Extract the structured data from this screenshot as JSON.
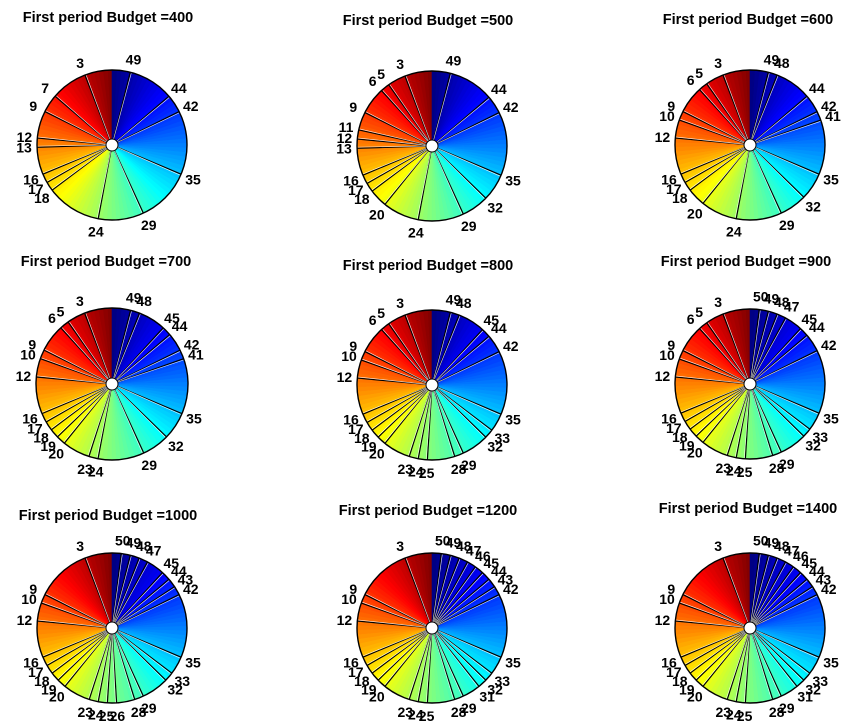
{
  "chart_data": [
    {
      "type": "pie",
      "title": "First period Budget =400",
      "ticks": [
        3,
        7,
        9,
        12,
        13,
        16,
        17,
        18,
        24,
        29,
        35,
        42,
        44,
        49
      ],
      "outline_color": "#000000",
      "colormap": "jet"
    },
    {
      "type": "pie",
      "title": "First period Budget =500",
      "ticks": [
        3,
        5,
        6,
        9,
        11,
        12,
        13,
        16,
        17,
        18,
        20,
        24,
        29,
        32,
        35,
        42,
        44,
        49
      ],
      "outline_color": "#000000",
      "colormap": "jet"
    },
    {
      "type": "pie",
      "title": "First period Budget =600",
      "ticks": [
        3,
        5,
        6,
        9,
        10,
        12,
        16,
        17,
        18,
        20,
        24,
        29,
        32,
        35,
        41,
        42,
        44,
        48,
        49
      ],
      "outline_color": "#000000",
      "colormap": "jet"
    },
    {
      "type": "pie",
      "title": "First period Budget =700",
      "ticks": [
        3,
        5,
        6,
        9,
        10,
        12,
        16,
        17,
        18,
        19,
        20,
        23,
        24,
        29,
        32,
        35,
        41,
        42,
        44,
        45,
        48,
        49
      ],
      "outline_color": "#000000",
      "colormap": "jet"
    },
    {
      "type": "pie",
      "title": "First period Budget =800",
      "ticks": [
        3,
        5,
        6,
        9,
        10,
        12,
        16,
        17,
        18,
        19,
        20,
        23,
        24,
        25,
        28,
        29,
        32,
        33,
        35,
        42,
        44,
        45,
        48,
        49
      ],
      "outline_color": "#000000",
      "colormap": "jet"
    },
    {
      "type": "pie",
      "title": "First period Budget =900",
      "ticks": [
        3,
        5,
        6,
        9,
        10,
        12,
        16,
        17,
        18,
        19,
        20,
        23,
        24,
        25,
        28,
        29,
        32,
        33,
        35,
        42,
        44,
        45,
        47,
        48,
        49,
        50
      ],
      "outline_color": "#000000",
      "colormap": "jet"
    },
    {
      "type": "pie",
      "title": "First period Budget =1000",
      "ticks": [
        3,
        9,
        10,
        12,
        16,
        17,
        18,
        19,
        20,
        23,
        24,
        25,
        26,
        28,
        29,
        32,
        33,
        35,
        42,
        43,
        44,
        45,
        47,
        48,
        49,
        50
      ],
      "outline_color": "#000000",
      "colormap": "jet"
    },
    {
      "type": "pie",
      "title": "First period Budget =1200",
      "ticks": [
        3,
        9,
        10,
        12,
        16,
        17,
        18,
        19,
        20,
        23,
        24,
        25,
        28,
        29,
        31,
        32,
        33,
        35,
        42,
        43,
        44,
        45,
        46,
        47,
        48,
        49,
        50
      ],
      "outline_color": "#000000",
      "colormap": "jet"
    },
    {
      "type": "pie",
      "title": "First period Budget =1400",
      "ticks": [
        3,
        9,
        10,
        12,
        16,
        17,
        18,
        19,
        20,
        23,
        24,
        25,
        28,
        29,
        31,
        32,
        33,
        35,
        42,
        43,
        44,
        45,
        46,
        47,
        48,
        49,
        50
      ],
      "outline_color": "#000000",
      "colormap": "jet"
    }
  ]
}
